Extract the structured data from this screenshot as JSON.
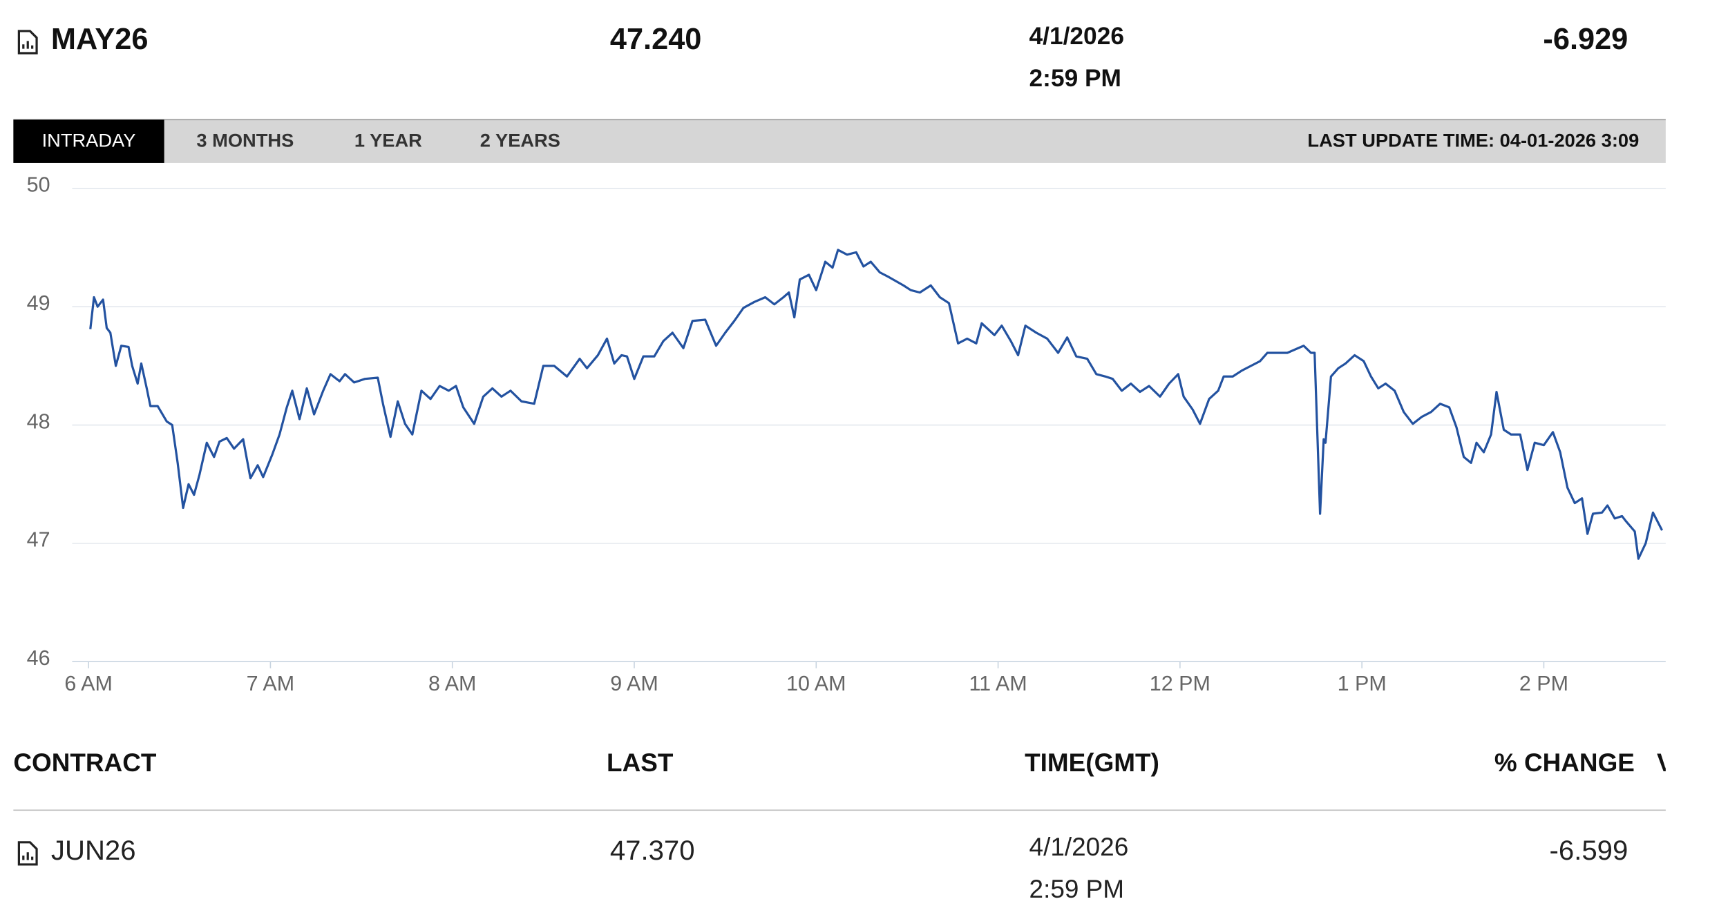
{
  "header": {
    "symbol": "MAY26",
    "last": "47.240",
    "date": "4/1/2026",
    "time": "2:59 PM",
    "change": "-6.929"
  },
  "tabs": [
    "INTRADAY",
    "3 MONTHS",
    "1 YEAR",
    "2 YEARS"
  ],
  "last_update": "LAST UPDATE TIME: 04-01-2026 3:09",
  "chart_data": {
    "type": "line",
    "color": "#2352a0",
    "grid": true,
    "xlim": [
      5.91,
      14.67
    ],
    "ylim": [
      46,
      50
    ],
    "yticks": [
      46,
      47,
      48,
      49,
      50
    ],
    "xticks": [
      {
        "value": 6,
        "label": "6 AM"
      },
      {
        "value": 7,
        "label": "7 AM"
      },
      {
        "value": 8,
        "label": "8 AM"
      },
      {
        "value": 9,
        "label": "9 AM"
      },
      {
        "value": 10,
        "label": "10 AM"
      },
      {
        "value": 11,
        "label": "11 AM"
      },
      {
        "value": 12,
        "label": "12 PM"
      },
      {
        "value": 13,
        "label": "1 PM"
      },
      {
        "value": 14,
        "label": "2 PM"
      }
    ],
    "x": [
      6.01,
      6.03,
      6.05,
      6.08,
      6.1,
      6.12,
      6.15,
      6.18,
      6.22,
      6.24,
      6.27,
      6.29,
      6.32,
      6.34,
      6.38,
      6.43,
      6.46,
      6.49,
      6.52,
      6.55,
      6.58,
      6.61,
      6.65,
      6.69,
      6.72,
      6.76,
      6.8,
      6.85,
      6.89,
      6.93,
      6.96,
      7.01,
      7.05,
      7.09,
      7.12,
      7.16,
      7.2,
      7.24,
      7.29,
      7.33,
      7.38,
      7.41,
      7.46,
      7.52,
      7.59,
      7.62,
      7.66,
      7.7,
      7.74,
      7.78,
      7.83,
      7.88,
      7.93,
      7.98,
      8.02,
      8.06,
      8.12,
      8.17,
      8.22,
      8.27,
      8.32,
      8.38,
      8.45,
      8.5,
      8.56,
      8.63,
      8.7,
      8.74,
      8.8,
      8.85,
      8.89,
      8.93,
      8.96,
      9.0,
      9.05,
      9.11,
      9.16,
      9.21,
      9.27,
      9.32,
      9.39,
      9.45,
      9.5,
      9.55,
      9.6,
      9.66,
      9.72,
      9.77,
      9.82,
      9.85,
      9.88,
      9.91,
      9.96,
      10.0,
      10.05,
      10.09,
      10.12,
      10.17,
      10.22,
      10.26,
      10.3,
      10.35,
      10.4,
      10.48,
      10.52,
      10.57,
      10.63,
      10.68,
      10.73,
      10.78,
      10.83,
      10.88,
      10.91,
      10.98,
      11.02,
      11.07,
      11.11,
      11.15,
      11.21,
      11.27,
      11.33,
      11.38,
      11.43,
      11.49,
      11.54,
      11.59,
      11.63,
      11.68,
      11.73,
      11.78,
      11.83,
      11.89,
      11.94,
      11.99,
      12.02,
      12.07,
      12.11,
      12.16,
      12.21,
      12.24,
      12.29,
      12.34,
      12.39,
      12.44,
      12.48,
      12.52,
      12.59,
      12.65,
      12.68,
      12.72,
      12.74,
      12.77,
      12.79,
      12.8,
      12.83,
      12.87,
      12.91,
      12.96,
      13.01,
      13.05,
      13.09,
      13.13,
      13.18,
      13.23,
      13.28,
      13.33,
      13.38,
      13.43,
      13.48,
      13.52,
      13.56,
      13.6,
      13.63,
      13.67,
      13.71,
      13.74,
      13.78,
      13.82,
      13.87,
      13.91,
      13.95,
      14.0,
      14.05,
      14.09,
      14.13,
      14.17,
      14.21,
      14.24,
      14.27,
      14.32,
      14.35,
      14.39,
      14.43,
      14.45,
      14.5,
      14.52,
      14.56,
      14.6,
      14.65
    ],
    "values": [
      48.81,
      49.08,
      49.0,
      49.06,
      48.82,
      48.78,
      48.5,
      48.67,
      48.66,
      48.5,
      48.35,
      48.52,
      48.31,
      48.16,
      48.16,
      48.03,
      48.0,
      47.68,
      47.3,
      47.5,
      47.41,
      47.58,
      47.85,
      47.73,
      47.86,
      47.89,
      47.8,
      47.88,
      47.55,
      47.66,
      47.56,
      47.75,
      47.92,
      48.15,
      48.29,
      48.05,
      48.31,
      48.09,
      48.29,
      48.43,
      48.37,
      48.43,
      48.36,
      48.39,
      48.4,
      48.17,
      47.9,
      48.2,
      48.01,
      47.92,
      48.29,
      48.22,
      48.33,
      48.29,
      48.33,
      48.15,
      48.01,
      48.24,
      48.31,
      48.24,
      48.29,
      48.2,
      48.18,
      48.5,
      48.5,
      48.41,
      48.56,
      48.48,
      48.59,
      48.73,
      48.52,
      48.59,
      48.58,
      48.39,
      48.58,
      48.58,
      48.71,
      48.78,
      48.65,
      48.88,
      48.89,
      48.67,
      48.78,
      48.88,
      48.99,
      49.04,
      49.08,
      49.02,
      49.08,
      49.12,
      48.91,
      49.23,
      49.27,
      49.14,
      49.38,
      49.33,
      49.48,
      49.44,
      49.46,
      49.34,
      49.38,
      49.29,
      49.25,
      49.18,
      49.14,
      49.12,
      49.18,
      49.08,
      49.03,
      48.69,
      48.73,
      48.69,
      48.86,
      48.76,
      48.84,
      48.71,
      48.59,
      48.84,
      48.78,
      48.73,
      48.61,
      48.74,
      48.58,
      48.56,
      48.43,
      48.41,
      48.39,
      48.29,
      48.35,
      48.28,
      48.33,
      48.24,
      48.35,
      48.43,
      48.24,
      48.13,
      48.01,
      48.22,
      48.29,
      48.41,
      48.41,
      48.46,
      48.5,
      48.54,
      48.61,
      48.61,
      48.61,
      48.65,
      48.67,
      48.61,
      48.61,
      47.25,
      47.88,
      47.85,
      48.41,
      48.48,
      48.52,
      48.59,
      48.54,
      48.41,
      48.31,
      48.35,
      48.29,
      48.11,
      48.01,
      48.07,
      48.11,
      48.18,
      48.15,
      47.98,
      47.73,
      47.68,
      47.85,
      47.77,
      47.92,
      48.28,
      47.96,
      47.92,
      47.92,
      47.62,
      47.85,
      47.83,
      47.94,
      47.77,
      47.47,
      47.34,
      47.38,
      47.08,
      47.25,
      47.26,
      47.32,
      47.21,
      47.23,
      47.19,
      47.1,
      46.87,
      47.0,
      47.26,
      47.11
    ]
  },
  "table": {
    "headers": [
      "CONTRACT",
      "LAST",
      "TIME(GMT)",
      "% CHANGE",
      "VOLUME"
    ],
    "rows": [
      [
        "JUN26",
        "47.370",
        "4/1/2026",
        "2:59 PM",
        "-6.599"
      ]
    ]
  }
}
